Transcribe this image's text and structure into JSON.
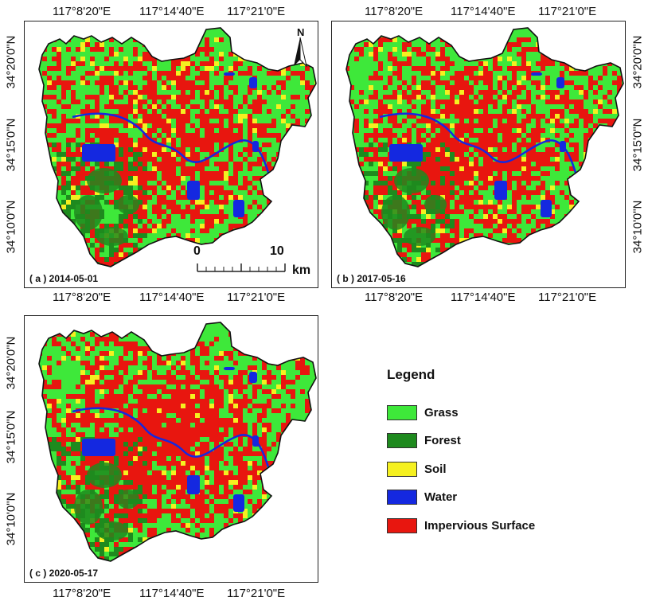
{
  "colors": {
    "grass": "#3ee83a",
    "forest": "#1e8a1e",
    "soil": "#f5f020",
    "water": "#1428e0",
    "impervious": "#e8160f"
  },
  "coords": {
    "lon1": "117°8'20\"E",
    "lon2": "117°14'40\"E",
    "lon3": "117°21'0\"E",
    "lat1": "34°20'0\"N",
    "lat2": "34°15'0\"N",
    "lat3": "34°10'0\"N"
  },
  "panels": {
    "a": {
      "label": "( a ) 2014-05-01"
    },
    "b": {
      "label": "( b ) 2017-05-16"
    },
    "c": {
      "label": "( c ) 2020-05-17"
    }
  },
  "north_arrow": {
    "label": "N"
  },
  "scale_bar": {
    "start": "0",
    "end": "10",
    "unit": "km"
  },
  "legend": {
    "title": "Legend",
    "items": [
      {
        "label": "Grass",
        "color_key": "grass"
      },
      {
        "label": "Forest",
        "color_key": "forest"
      },
      {
        "label": "Soil",
        "color_key": "soil"
      },
      {
        "label": "Water",
        "color_key": "water"
      },
      {
        "label": "Impervious Surface",
        "color_key": "impervious"
      }
    ]
  }
}
